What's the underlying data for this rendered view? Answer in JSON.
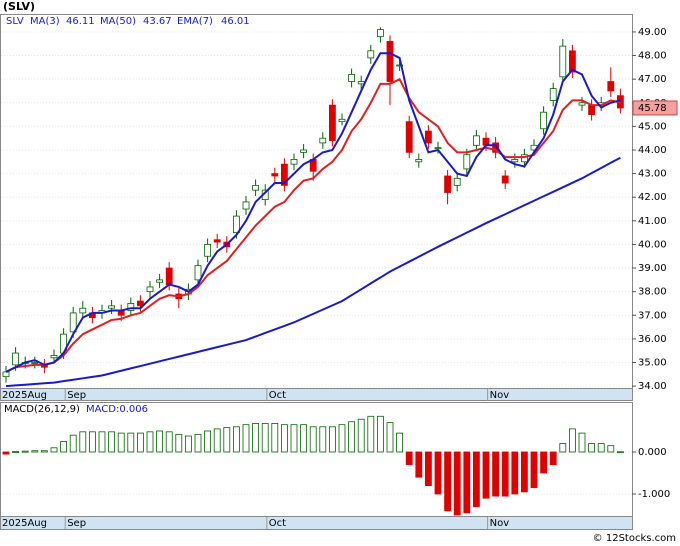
{
  "chart_data": [
    {
      "type": "candlestick",
      "title": "(SLV)",
      "name": "SLV",
      "categories": [
        "2025Aug",
        null,
        null,
        null,
        null,
        null,
        null,
        "Sep",
        null,
        null,
        null,
        null,
        null,
        null,
        null,
        null,
        null,
        null,
        null,
        null,
        null,
        null,
        null,
        null,
        null,
        null,
        null,
        null,
        "Oct",
        null,
        null,
        null,
        null,
        null,
        null,
        null,
        null,
        null,
        null,
        null,
        null,
        null,
        null,
        null,
        null,
        null,
        null,
        null,
        null,
        null,
        null,
        "Nov",
        null,
        null,
        null,
        null,
        null,
        null,
        null,
        null,
        null,
        null,
        null,
        null,
        null
      ],
      "open": [
        34.4,
        34.9,
        35.0,
        35.0,
        34.9,
        35.2,
        35.4,
        36.3,
        37.1,
        37.1,
        37.1,
        37.3,
        37.2,
        37.2,
        37.6,
        38.0,
        38.4,
        39.0,
        37.9,
        37.9,
        38.5,
        39.5,
        40.2,
        40.1,
        40.5,
        41.5,
        42.3,
        41.9,
        43.0,
        43.4,
        43.4,
        43.9,
        43.6,
        44.3,
        45.9,
        45.2,
        46.9,
        46.8,
        47.9,
        48.8,
        48.6,
        47.6,
        45.2,
        43.5,
        44.8,
        44.1,
        42.9,
        42.5,
        43.2,
        44.2,
        44.5,
        44.3,
        42.9,
        43.5,
        43.5,
        44.0,
        44.9,
        46.1,
        47.1,
        48.2,
        45.9,
        45.9,
        45.9,
        46.9,
        46.3
      ],
      "high": [
        34.85,
        35.65,
        35.25,
        35.25,
        35.15,
        35.55,
        36.45,
        37.35,
        37.6,
        37.35,
        37.45,
        37.65,
        37.45,
        37.75,
        37.85,
        38.45,
        38.75,
        39.25,
        38.15,
        38.35,
        39.35,
        40.25,
        40.45,
        40.35,
        41.45,
        42.05,
        42.75,
        42.55,
        43.25,
        43.65,
        43.85,
        44.25,
        43.85,
        44.75,
        46.15,
        45.55,
        47.45,
        47.15,
        48.45,
        49.2,
        48.85,
        47.85,
        45.45,
        43.85,
        45.05,
        44.35,
        43.15,
        43.05,
        44.05,
        44.85,
        44.75,
        44.55,
        43.15,
        43.85,
        44.05,
        44.45,
        45.85,
        46.85,
        48.7,
        48.45,
        46.25,
        46.15,
        46.25,
        47.5,
        46.6
      ],
      "low": [
        34.15,
        34.65,
        34.75,
        34.75,
        34.55,
        34.95,
        35.15,
        36.05,
        36.85,
        36.65,
        36.85,
        37.05,
        36.75,
        36.95,
        37.15,
        37.75,
        38.15,
        38.05,
        37.3,
        37.65,
        38.25,
        39.25,
        39.85,
        39.65,
        40.25,
        41.25,
        42.05,
        41.65,
        42.65,
        42.25,
        43.15,
        43.65,
        42.7,
        44.05,
        44.15,
        45.05,
        46.65,
        46.55,
        47.65,
        48.55,
        45.9,
        47.35,
        43.65,
        43.25,
        44.05,
        43.85,
        41.7,
        42.25,
        42.95,
        43.95,
        43.95,
        43.65,
        42.35,
        43.25,
        43.25,
        43.75,
        44.65,
        45.85,
        46.85,
        47.05,
        45.65,
        45.25,
        45.65,
        46.25,
        45.55
      ],
      "close": [
        34.6,
        35.4,
        35.0,
        35.0,
        34.8,
        35.3,
        36.2,
        37.1,
        37.3,
        36.9,
        37.2,
        37.4,
        37.0,
        37.5,
        37.4,
        38.2,
        38.5,
        38.3,
        37.7,
        38.1,
        39.1,
        40.0,
        40.1,
        39.9,
        41.2,
        41.8,
        42.5,
        42.3,
        42.9,
        42.5,
        43.6,
        44.0,
        43.1,
        44.5,
        44.4,
        45.3,
        47.2,
        46.9,
        48.2,
        49.1,
        46.9,
        47.6,
        43.9,
        43.6,
        44.3,
        44.1,
        42.2,
        42.8,
        43.8,
        44.6,
        44.2,
        43.9,
        42.6,
        43.6,
        43.8,
        44.2,
        45.6,
        46.6,
        48.4,
        47.3,
        46.0,
        45.5,
        46.0,
        46.5,
        45.78
      ],
      "up_color": "#006400",
      "down_color": "#e00000",
      "last_color": "#f4a0a0",
      "series": [
        {
          "name": "MA(3)",
          "color": "#1a1acc",
          "values": [
            34.6,
            34.8,
            35.0,
            35.1,
            34.9,
            35.0,
            35.4,
            36.2,
            36.9,
            37.1,
            37.1,
            37.2,
            37.2,
            37.3,
            37.3,
            37.7,
            38.0,
            38.3,
            38.2,
            38.0,
            38.3,
            39.1,
            39.7,
            40.0,
            40.4,
            41.0,
            41.8,
            42.2,
            42.6,
            42.6,
            43.0,
            43.4,
            43.6,
            43.9,
            44.0,
            44.7,
            45.6,
            46.5,
            47.4,
            48.1,
            48.1,
            47.9,
            46.1,
            45.0,
            43.9,
            44.0,
            43.5,
            43.0,
            42.9,
            43.7,
            44.2,
            44.2,
            43.6,
            43.4,
            43.3,
            43.9,
            44.5,
            45.5,
            46.9,
            47.4,
            47.2,
            46.3,
            45.8,
            46.0,
            46.11
          ]
        },
        {
          "name": "MA(50)",
          "color": "#1a1acc",
          "values": [
            34.0,
            34.03,
            34.06,
            34.09,
            34.12,
            34.15,
            34.21,
            34.27,
            34.33,
            34.39,
            34.45,
            34.55,
            34.65,
            34.75,
            34.85,
            34.95,
            35.05,
            35.15,
            35.25,
            35.35,
            35.45,
            35.55,
            35.65,
            35.75,
            35.85,
            35.95,
            36.1,
            36.25,
            36.4,
            36.55,
            36.7,
            36.88,
            37.06,
            37.24,
            37.42,
            37.6,
            37.85,
            38.1,
            38.35,
            38.6,
            38.85,
            39.06,
            39.27,
            39.48,
            39.69,
            39.9,
            40.1,
            40.3,
            40.5,
            40.7,
            40.9,
            41.09,
            41.28,
            41.47,
            41.66,
            41.85,
            42.04,
            42.23,
            42.42,
            42.61,
            42.8,
            43.02,
            43.24,
            43.46,
            43.67
          ]
        },
        {
          "name": "EMA(7)",
          "color": "#e02020",
          "values": [
            34.6,
            34.8,
            34.85,
            34.9,
            34.9,
            35.0,
            35.3,
            35.8,
            36.2,
            36.4,
            36.6,
            36.8,
            36.85,
            37.0,
            37.1,
            37.4,
            37.7,
            37.85,
            37.8,
            37.9,
            38.2,
            38.7,
            39.0,
            39.3,
            39.8,
            40.3,
            40.8,
            41.2,
            41.6,
            41.8,
            42.3,
            42.7,
            42.8,
            43.2,
            43.5,
            44.0,
            44.8,
            45.3,
            46.0,
            46.8,
            46.8,
            47.0,
            46.2,
            45.6,
            45.3,
            45.0,
            44.3,
            43.9,
            43.9,
            44.0,
            44.1,
            44.0,
            43.7,
            43.7,
            43.7,
            43.8,
            44.3,
            44.8,
            45.7,
            46.1,
            46.1,
            45.9,
            45.9,
            46.1,
            46.01
          ]
        }
      ],
      "ylim": [
        33.92,
        49.76
      ],
      "yticks": [
        {
          "value": 34,
          "label": "34.00"
        },
        {
          "value": 35,
          "label": "35.00"
        },
        {
          "value": 36,
          "label": "36.00"
        },
        {
          "value": 37,
          "label": "37.00"
        },
        {
          "value": 38,
          "label": "38.00"
        },
        {
          "value": 39,
          "label": "39.00"
        },
        {
          "value": 40,
          "label": "40.00"
        },
        {
          "value": 41,
          "label": "41.00"
        },
        {
          "value": 42,
          "label": "42.00"
        },
        {
          "value": 43,
          "label": "43.00"
        },
        {
          "value": 44,
          "label": "44.00"
        },
        {
          "value": 45,
          "label": "45.00"
        },
        {
          "value": 46,
          "label": "46.00"
        },
        {
          "value": 47,
          "label": "47.00"
        },
        {
          "value": 48,
          "label": "48.00"
        },
        {
          "value": 49,
          "label": "49.00"
        }
      ],
      "grid": true
    },
    {
      "type": "bar",
      "title": "MACD(26,12,9)",
      "readout": "MACD:0.006",
      "categories": [
        "2025Aug",
        null,
        null,
        null,
        null,
        null,
        null,
        "Sep",
        null,
        null,
        null,
        null,
        null,
        null,
        null,
        null,
        null,
        null,
        null,
        null,
        null,
        null,
        null,
        null,
        null,
        null,
        null,
        null,
        "Oct",
        null,
        null,
        null,
        null,
        null,
        null,
        null,
        null,
        null,
        null,
        null,
        null,
        null,
        null,
        null,
        null,
        null,
        null,
        null,
        null,
        null,
        null,
        "Nov",
        null,
        null,
        null,
        null,
        null,
        null,
        null,
        null,
        null,
        null,
        null,
        null,
        null
      ],
      "values": [
        -0.05,
        0.01,
        0.02,
        0.03,
        0.03,
        0.1,
        0.25,
        0.4,
        0.48,
        0.48,
        0.48,
        0.48,
        0.45,
        0.45,
        0.45,
        0.48,
        0.5,
        0.48,
        0.42,
        0.38,
        0.42,
        0.5,
        0.55,
        0.58,
        0.6,
        0.65,
        0.68,
        0.68,
        0.68,
        0.65,
        0.65,
        0.65,
        0.6,
        0.6,
        0.6,
        0.65,
        0.72,
        0.78,
        0.85,
        0.85,
        0.7,
        0.45,
        -0.3,
        -0.6,
        -0.8,
        -1.0,
        -1.4,
        -1.5,
        -1.45,
        -1.3,
        -1.1,
        -1.05,
        -1.05,
        -1.0,
        -0.95,
        -0.85,
        -0.5,
        -0.3,
        0.2,
        0.55,
        0.45,
        0.2,
        0.2,
        0.15,
        0.006
      ],
      "up_color": "#006400",
      "down_color": "#e00000",
      "ylim": [
        -1.524,
        1.19
      ],
      "yticks": [
        {
          "value": 0,
          "label": "0.000"
        },
        {
          "value": -1,
          "label": "-1.000"
        }
      ],
      "grid": true
    }
  ],
  "footer": "© 12Stocks.com"
}
